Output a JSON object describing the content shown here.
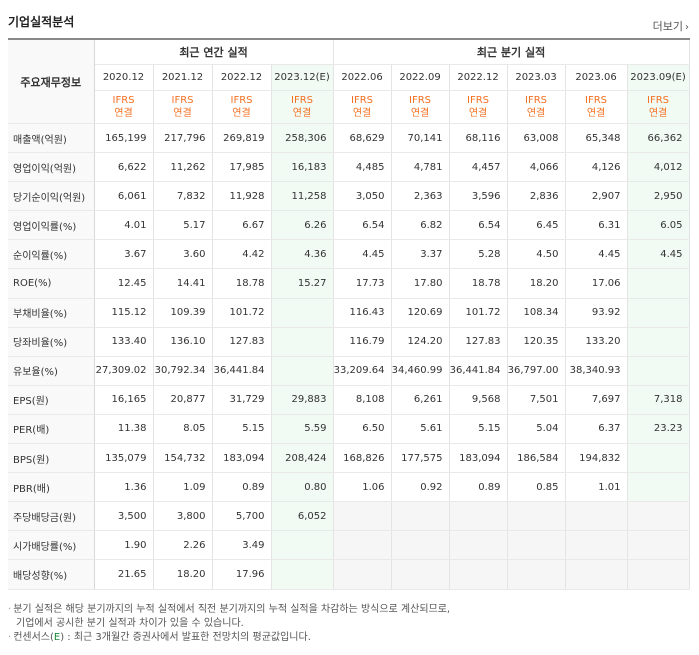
{
  "title": "기업실적분석",
  "more_label": "더보기",
  "header": {
    "row_label": "주요재무정보",
    "annual_group": "최근 연간 실적",
    "quarter_group": "최근 분기 실적",
    "periods": [
      {
        "label": "2020.12",
        "est": false
      },
      {
        "label": "2021.12",
        "est": false
      },
      {
        "label": "2022.12",
        "est": false
      },
      {
        "label": "2023.12(E)",
        "est": true
      },
      {
        "label": "2022.06",
        "est": false
      },
      {
        "label": "2022.09",
        "est": false
      },
      {
        "label": "2022.12",
        "est": false
      },
      {
        "label": "2023.03",
        "est": false
      },
      {
        "label": "2023.06",
        "est": false
      },
      {
        "label": "2023.09(E)",
        "est": true
      }
    ],
    "ifrs_top": "IFRS",
    "ifrs_bottom": "연결"
  },
  "rows": [
    {
      "label": "매출액(억원)",
      "values": [
        "165,199",
        "217,796",
        "269,819",
        "258,306",
        "68,629",
        "70,141",
        "68,116",
        "63,008",
        "65,348",
        "66,362"
      ]
    },
    {
      "label": "영업이익(억원)",
      "values": [
        "6,622",
        "11,262",
        "17,985",
        "16,183",
        "4,485",
        "4,781",
        "4,457",
        "4,066",
        "4,126",
        "4,012"
      ]
    },
    {
      "label": "당기순이익(억원)",
      "values": [
        "6,061",
        "7,832",
        "11,928",
        "11,258",
        "3,050",
        "2,363",
        "3,596",
        "2,836",
        "2,907",
        "2,950"
      ]
    },
    {
      "label": "영업이익률(%)",
      "values": [
        "4.01",
        "5.17",
        "6.67",
        "6.26",
        "6.54",
        "6.82",
        "6.54",
        "6.45",
        "6.31",
        "6.05"
      ]
    },
    {
      "label": "순이익률(%)",
      "values": [
        "3.67",
        "3.60",
        "4.42",
        "4.36",
        "4.45",
        "3.37",
        "5.28",
        "4.50",
        "4.45",
        "4.45"
      ]
    },
    {
      "label": "ROE(%)",
      "values": [
        "12.45",
        "14.41",
        "18.78",
        "15.27",
        "17.73",
        "17.80",
        "18.78",
        "18.20",
        "17.06",
        ""
      ]
    },
    {
      "label": "부채비율(%)",
      "values": [
        "115.12",
        "109.39",
        "101.72",
        "",
        "116.43",
        "120.69",
        "101.72",
        "108.34",
        "93.92",
        ""
      ]
    },
    {
      "label": "당좌비율(%)",
      "values": [
        "133.40",
        "136.10",
        "127.83",
        "",
        "116.79",
        "124.20",
        "127.83",
        "120.35",
        "133.20",
        ""
      ]
    },
    {
      "label": "유보율(%)",
      "values": [
        "27,309.02",
        "30,792.34",
        "36,441.84",
        "",
        "33,209.64",
        "34,460.99",
        "36,441.84",
        "36,797.00",
        "38,340.93",
        ""
      ]
    },
    {
      "label": "EPS(원)",
      "values": [
        "16,165",
        "20,877",
        "31,729",
        "29,883",
        "8,108",
        "6,261",
        "9,568",
        "7,501",
        "7,697",
        "7,318"
      ]
    },
    {
      "label": "PER(배)",
      "values": [
        "11.38",
        "8.05",
        "5.15",
        "5.59",
        "6.50",
        "5.61",
        "5.15",
        "5.04",
        "6.37",
        "23.23"
      ]
    },
    {
      "label": "BPS(원)",
      "values": [
        "135,079",
        "154,732",
        "183,094",
        "208,424",
        "168,826",
        "177,575",
        "183,094",
        "186,584",
        "194,832",
        ""
      ]
    },
    {
      "label": "PBR(배)",
      "values": [
        "1.36",
        "1.09",
        "0.89",
        "0.80",
        "1.06",
        "0.92",
        "0.89",
        "0.85",
        "1.01",
        ""
      ]
    },
    {
      "label": "주당배당금(원)",
      "values": [
        "3,500",
        "3,800",
        "5,700",
        "6,052",
        "",
        "",
        "",
        "",
        "",
        ""
      ]
    },
    {
      "label": "시가배당률(%)",
      "values": [
        "1.90",
        "2.26",
        "3.49",
        "",
        "",
        "",
        "",
        "",
        "",
        ""
      ]
    },
    {
      "label": "배당성향(%)",
      "values": [
        "21.65",
        "18.20",
        "17.96",
        "",
        "",
        "",
        "",
        "",
        "",
        ""
      ]
    }
  ],
  "notes": {
    "line1": "분기 실적은 해당 분기까지의 누적 실적에서 직전 분기까지의 누적 실적을 차감하는 방식으로 계산되므로,",
    "line2": "기업에서 공시한 분기 실적과 차이가 있을 수 있습니다.",
    "line3_prefix": "컨센서스(",
    "line3_mark": "E",
    "line3_suffix": ") : 최근 3개월간 증권사에서 발표한 전망치의 평균값입니다."
  }
}
